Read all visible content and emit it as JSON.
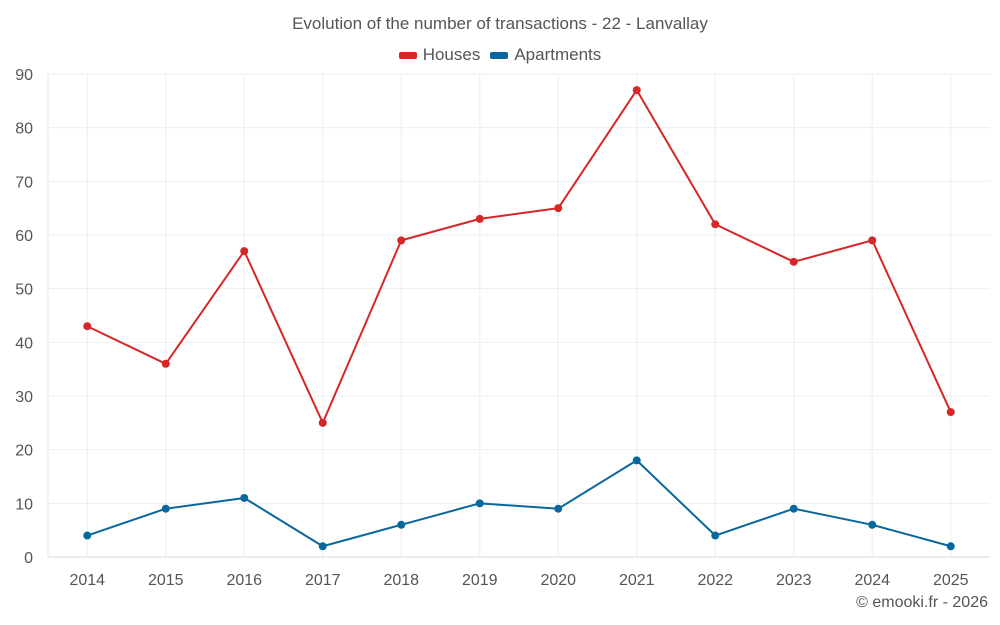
{
  "chart_data": {
    "type": "line",
    "title": "Evolution of the number of transactions - 22 - Lanvallay",
    "xlabel": "",
    "ylabel": "",
    "categories": [
      "2014",
      "2015",
      "2016",
      "2017",
      "2018",
      "2019",
      "2020",
      "2021",
      "2022",
      "2023",
      "2024",
      "2025"
    ],
    "ylim": [
      0,
      90
    ],
    "yticks": [
      "0",
      "10",
      "20",
      "30",
      "40",
      "50",
      "60",
      "70",
      "80",
      "90"
    ],
    "grid": true,
    "legend_position": "top-center",
    "series": [
      {
        "name": "Houses",
        "color": "#d62728",
        "values": [
          43,
          36,
          57,
          25,
          59,
          63,
          65,
          87,
          62,
          55,
          59,
          27
        ]
      },
      {
        "name": "Apartments",
        "color": "#08679c",
        "values": [
          4,
          9,
          11,
          2,
          6,
          10,
          9,
          18,
          4,
          9,
          6,
          2
        ]
      }
    ]
  },
  "footer": {
    "credit": "© emooki.fr - 2026"
  }
}
